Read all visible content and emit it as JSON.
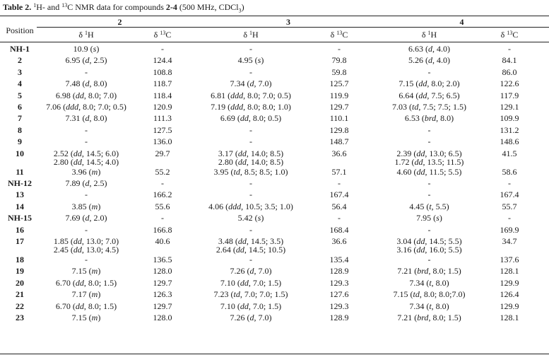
{
  "caption": {
    "label": "Table 2.",
    "text_a": " ",
    "sup1": "1",
    "text_b": "H- and ",
    "sup2": "13",
    "text_c": "C NMR data for compounds ",
    "compounds": "2-4",
    "text_d": " (500 MHz, CDCl",
    "sub3": "3",
    "text_e": ")"
  },
  "headers": {
    "position": "Position",
    "compounds": [
      "2",
      "3",
      "4"
    ],
    "sub": [
      {
        "delta": "δ ",
        "sup": "1",
        "nuc": "H"
      },
      {
        "delta": "δ ",
        "sup": "13",
        "nuc": "C"
      },
      {
        "delta": "δ ",
        "sup": "1",
        "nuc": "H"
      },
      {
        "delta": "δ ",
        "sup": "13",
        "nuc": "C"
      },
      {
        "delta": "δ ",
        "sup": "1",
        "nuc": "H"
      },
      {
        "delta": "δ ",
        "sup": "13",
        "nuc": "C"
      }
    ]
  },
  "rows": [
    {
      "pos": "NH-1",
      "c2h": [
        "10.9 (s)"
      ],
      "c2c": "-",
      "c3h": [
        "-"
      ],
      "c3c": "-",
      "c4h": [
        "6.63 (d, 4.0)"
      ],
      "c4c": "-"
    },
    {
      "pos": "2",
      "c2h": [
        "6.95 (d, 2.5)"
      ],
      "c2c": "124.4",
      "c3h": [
        "4.95 (s)"
      ],
      "c3c": "79.8",
      "c4h": [
        "5.26 (d, 4.0)"
      ],
      "c4c": "84.1"
    },
    {
      "pos": "3",
      "c2h": [
        "-"
      ],
      "c2c": "108.8",
      "c3h": [
        "-"
      ],
      "c3c": "59.8",
      "c4h": [
        "-"
      ],
      "c4c": "86.0"
    },
    {
      "pos": "4",
      "c2h": [
        "7.48 (d, 8.0)"
      ],
      "c2c": "118.7",
      "c3h": [
        "7.34 (d, 7.0)"
      ],
      "c3c": "125.7",
      "c4h": [
        "7.15 (dd, 8.0; 2.0)"
      ],
      "c4c": "122.6"
    },
    {
      "pos": "5",
      "c2h": [
        "6.98 (dd, 8.0; 7.0)"
      ],
      "c2c": "118.4",
      "c3h": [
        "6.81 (ddd, 8.0; 7.0; 0.5)"
      ],
      "c3c": "119.9",
      "c4h": [
        "6.64 (dd, 7.5; 6.5)"
      ],
      "c4c": "117.9"
    },
    {
      "pos": "6",
      "c2h": [
        "7.06 (ddd, 8.0; 7.0; 0.5)"
      ],
      "c2c": "120.9",
      "c3h": [
        "7.19 (ddd, 8.0; 8.0; 1.0)"
      ],
      "c3c": "129.7",
      "c4h": [
        "7.03 (td, 7.5; 7.5; 1.5)"
      ],
      "c4c": "129.1"
    },
    {
      "pos": "7",
      "c2h": [
        "7.31 (d, 8.0)"
      ],
      "c2c": "111.3",
      "c3h": [
        "6.69 (dd, 8.0; 0.5)"
      ],
      "c3c": "110.1",
      "c4h": [
        "6.53 (brd, 8.0)"
      ],
      "c4c": "109.9"
    },
    {
      "pos": "8",
      "c2h": [
        "-"
      ],
      "c2c": "127.5",
      "c3h": [
        "-"
      ],
      "c3c": "129.8",
      "c4h": [
        "-"
      ],
      "c4c": "131.2"
    },
    {
      "pos": "9",
      "c2h": [
        "-"
      ],
      "c2c": "136.0",
      "c3h": [
        "-"
      ],
      "c3c": "148.7",
      "c4h": [
        "-"
      ],
      "c4c": "148.6"
    },
    {
      "pos": "10",
      "c2h": [
        "2.52 (dd, 14.5; 6.0)",
        "2.80 (dd, 14.5; 4.0)"
      ],
      "c2c": "29.7",
      "c3h": [
        "3.17 (dd, 14.0; 8.5)",
        "2.80 (dd, 14.0; 8.5)"
      ],
      "c3c": "36.6",
      "c4h": [
        "2.39 (dd, 13.0; 6.5)",
        "1.72 (dd, 13.5; 11.5)"
      ],
      "c4c": "41.5"
    },
    {
      "pos": "11",
      "c2h": [
        "3.96 (m)"
      ],
      "c2c": "55.2",
      "c3h": [
        "3.95 (td, 8.5; 8.5; 1.0)"
      ],
      "c3c": "57.1",
      "c4h": [
        "4.60 (dd, 11.5; 5.5)"
      ],
      "c4c": "58.6"
    },
    {
      "pos": "NH-12",
      "c2h": [
        "7.89 (d, 2.5)"
      ],
      "c2c": "-",
      "c3h": [
        "-"
      ],
      "c3c": "-",
      "c4h": [
        "-"
      ],
      "c4c": "-"
    },
    {
      "pos": "13",
      "c2h": [
        "-"
      ],
      "c2c": "166.2",
      "c3h": [
        "-"
      ],
      "c3c": "167.4",
      "c4h": [
        "-"
      ],
      "c4c": "167.4"
    },
    {
      "pos": "14",
      "c2h": [
        "3.85 (m)"
      ],
      "c2c": "55.6",
      "c3h": [
        "4.06 (ddd, 10.5; 3.5; 1.0)"
      ],
      "c3c": "56.4",
      "c4h": [
        "4.45 (t, 5.5)"
      ],
      "c4c": "55.7"
    },
    {
      "pos": "NH-15",
      "c2h": [
        "7.69 (d, 2.0)"
      ],
      "c2c": "-",
      "c3h": [
        "5.42 (s)"
      ],
      "c3c": "-",
      "c4h": [
        "7.95 (s)"
      ],
      "c4c": "-"
    },
    {
      "pos": "16",
      "c2h": [
        "-"
      ],
      "c2c": "166.8",
      "c3h": [
        "-"
      ],
      "c3c": "168.4",
      "c4h": [
        "-"
      ],
      "c4c": "169.9"
    },
    {
      "pos": "17",
      "c2h": [
        "1.85 (dd, 13.0; 7.0)",
        "2.45 (dd, 13.0; 4.5)"
      ],
      "c2c": "40.6",
      "c3h": [
        "3.48 (dd, 14.5; 3.5)",
        "2.64 (dd, 14.5; 10.5)"
      ],
      "c3c": "36.6",
      "c4h": [
        "3.04 (dd, 14.5; 5.5)",
        "3.16 (dd, 16.0; 5.5)"
      ],
      "c4c": "34.7"
    },
    {
      "pos": "18",
      "c2h": [
        "-"
      ],
      "c2c": "136.5",
      "c3h": [
        "-"
      ],
      "c3c": "135.4",
      "c4h": [
        "-"
      ],
      "c4c": "137.6"
    },
    {
      "pos": "19",
      "c2h": [
        "7.15 (m)"
      ],
      "c2c": "128.0",
      "c3h": [
        "7.26 (d, 7.0)"
      ],
      "c3c": "128.9",
      "c4h": [
        "7.21 (brd, 8.0; 1.5)"
      ],
      "c4c": "128.1"
    },
    {
      "pos": "20",
      "c2h": [
        "6.70 (dd, 8.0; 1.5)"
      ],
      "c2c": "129.7",
      "c3h": [
        "7.10 (dd, 7.0; 1.5)"
      ],
      "c3c": "129.3",
      "c4h": [
        "7.34 (t, 8.0)"
      ],
      "c4c": "129.9"
    },
    {
      "pos": "21",
      "c2h": [
        "7.17 (m)"
      ],
      "c2c": "126.3",
      "c3h": [
        "7.23 (td, 7.0; 7.0; 1.5)"
      ],
      "c3c": "127.6",
      "c4h": [
        "7.15 (td, 8.0; 8.0;7.0)"
      ],
      "c4c": "126.4"
    },
    {
      "pos": "22",
      "c2h": [
        "6.70 (dd, 8.0; 1.5)"
      ],
      "c2c": "129.7",
      "c3h": [
        "7.10 (dd, 7.0; 1.5)"
      ],
      "c3c": "129.3",
      "c4h": [
        "7.34 (t, 8.0)"
      ],
      "c4c": "129.9"
    },
    {
      "pos": "23",
      "c2h": [
        "7.15 (m)"
      ],
      "c2c": "128.0",
      "c3h": [
        "7.26 (d, 7.0)"
      ],
      "c3c": "128.9",
      "c4h": [
        "7.21 (brd, 8.0; 1.5)"
      ],
      "c4c": "128.1"
    }
  ]
}
